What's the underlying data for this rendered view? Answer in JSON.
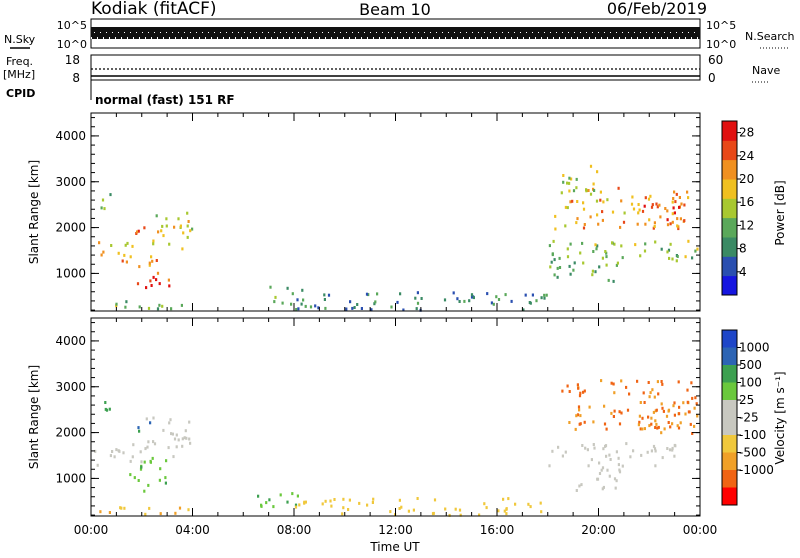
{
  "header": {
    "station": "Kodiak (fitACF)",
    "beam": "Beam 10",
    "date": "06/Feb/2019"
  },
  "top_panels": {
    "nsky_label": "N.Sky",
    "nsky_ticks": [
      "10^5",
      "10^0"
    ],
    "nsearch_label": "N.Search",
    "nsearch_ticks": [
      "10^5",
      "10^0"
    ],
    "freq_label": "Freq.",
    "freq_unit": "[MHz]",
    "freq_ticks": [
      "18",
      "8"
    ],
    "nave_label": "Nave",
    "nave_ticks": [
      "60",
      "0"
    ],
    "cpid_label": "CPID",
    "cpid_value": "normal (fast) 151 RF"
  },
  "colors": {
    "power": [
      "#1616e0",
      "#2a4fb0",
      "#3a8a64",
      "#5aa85a",
      "#a8c830",
      "#f0c020",
      "#f09020",
      "#e84818",
      "#e01010"
    ],
    "velocity": [
      "#ff0000",
      "#f06414",
      "#f0a028",
      "#f0c83c",
      "#c8c8c0",
      "#c8c8c0",
      "#6ac83c",
      "#3ca050",
      "#2c64b4",
      "#1e46c8"
    ]
  },
  "chart_data": [
    {
      "type": "heatmap",
      "name": "power",
      "ylabel": "Slant Range [km]",
      "ylim": [
        180,
        4500
      ],
      "y_ticks": [
        "4000",
        "3000",
        "2000",
        "1000"
      ],
      "x_ticks": [
        "00:00",
        "04:00",
        "08:00",
        "12:00",
        "16:00",
        "20:00",
        "00:00"
      ],
      "colorbar_label": "Power [dB]",
      "colorbar_ticks": [
        "28",
        "24",
        "20",
        "16",
        "12",
        "8",
        "4"
      ],
      "clim": [
        0,
        30
      ],
      "regions": [
        {
          "t": [
            0.0,
            1.6
          ],
          "r": [
            1350,
            1750
          ],
          "v": 18
        },
        {
          "t": [
            0.8,
            2.6
          ],
          "r": [
            1150,
            1500
          ],
          "v": 21
        },
        {
          "t": [
            1.8,
            3.1
          ],
          "r": [
            650,
            1200
          ],
          "v": 27
        },
        {
          "t": [
            2.4,
            4.1
          ],
          "r": [
            1450,
            2350
          ],
          "v": 16
        },
        {
          "t": [
            1.5,
            2.2
          ],
          "r": [
            1900,
            2300
          ],
          "v": 25
        },
        {
          "t": [
            0.3,
            0.9
          ],
          "r": [
            2400,
            2900
          ],
          "v": 10
        },
        {
          "t": [
            0.0,
            3.8
          ],
          "r": [
            200,
            420
          ],
          "v": 12
        },
        {
          "t": [
            6.5,
            8.3
          ],
          "r": [
            350,
            750
          ],
          "v": 9
        },
        {
          "t": [
            8.0,
            18.0
          ],
          "r": [
            200,
            650
          ],
          "v": 8
        },
        {
          "t": [
            18.0,
            24.0
          ],
          "r": [
            1300,
            1750
          ],
          "v": 14
        },
        {
          "t": [
            18.2,
            23.5
          ],
          "r": [
            2000,
            2900
          ],
          "v": 20
        },
        {
          "t": [
            21.5,
            24.0
          ],
          "r": [
            2100,
            2600
          ],
          "v": 26
        },
        {
          "t": [
            18.5,
            20.0
          ],
          "r": [
            2700,
            3400
          ],
          "v": 14
        },
        {
          "t": [
            18.0,
            21.0
          ],
          "r": [
            850,
            1400
          ],
          "v": 12
        }
      ]
    },
    {
      "type": "heatmap",
      "name": "velocity",
      "ylabel": "Slant Range [km]",
      "ylim": [
        180,
        4500
      ],
      "y_ticks": [
        "4000",
        "3000",
        "2000",
        "1000"
      ],
      "x_ticks": [
        "00:00",
        "04:00",
        "08:00",
        "12:00",
        "16:00",
        "20:00",
        "00:00"
      ],
      "xlabel": "Time UT",
      "colorbar_label": "Velocity [m s⁻¹]",
      "colorbar_ticks": [
        "1000",
        "500",
        "100",
        "25",
        "-25",
        "-100",
        "-500",
        "-1000"
      ],
      "regions": [
        {
          "t": [
            0.0,
            2.0
          ],
          "r": [
            1300,
            1800
          ],
          "v": 0
        },
        {
          "t": [
            2.0,
            4.0
          ],
          "r": [
            1500,
            2400
          ],
          "v": 0
        },
        {
          "t": [
            1.5,
            3.0
          ],
          "r": [
            700,
            1500
          ],
          "v": 80
        },
        {
          "t": [
            1.8,
            2.4
          ],
          "r": [
            1900,
            2300
          ],
          "v": 600
        },
        {
          "t": [
            0.3,
            0.8
          ],
          "r": [
            2300,
            2900
          ],
          "v": 150
        },
        {
          "t": [
            0.0,
            4.0
          ],
          "r": [
            200,
            400
          ],
          "v": -80
        },
        {
          "t": [
            6.5,
            8.5
          ],
          "r": [
            400,
            800
          ],
          "v": 90
        },
        {
          "t": [
            8.0,
            18.0
          ],
          "r": [
            200,
            600
          ],
          "v": -60
        },
        {
          "t": [
            18.0,
            24.0
          ],
          "r": [
            1300,
            1800
          ],
          "v": 0
        },
        {
          "t": [
            18.5,
            23.8
          ],
          "r": [
            2100,
            3200
          ],
          "v": -520
        },
        {
          "t": [
            21.5,
            24.0
          ],
          "r": [
            2000,
            2700
          ],
          "v": -480
        },
        {
          "t": [
            19.0,
            21.0
          ],
          "r": [
            700,
            1300
          ],
          "v": 0
        }
      ]
    }
  ]
}
